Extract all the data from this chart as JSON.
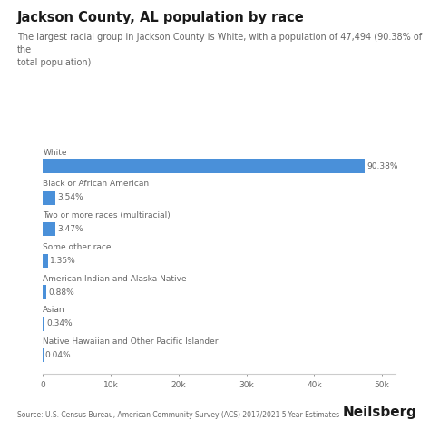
{
  "title": "Jackson County, AL population by race",
  "subtitle": "The largest racial group in Jackson County is White, with a population of 47,494 (90.38% of the\ntotal population)",
  "categories": [
    "White",
    "Black or African American",
    "Two or more races (multiracial)",
    "Some other race",
    "American Indian and Alaska Native",
    "Asian",
    "Native Hawaiian and Other Pacific Islander"
  ],
  "values": [
    47494,
    1860,
    1823,
    709,
    463,
    179,
    21
  ],
  "percentages": [
    "90.38%",
    "3.54%",
    "3.47%",
    "1.35%",
    "0.88%",
    "0.34%",
    "0.04%"
  ],
  "bar_color": "#4a90d9",
  "background_color": "#ffffff",
  "text_color": "#1a1a1a",
  "label_color": "#666666",
  "source_text": "Source: U.S. Census Bureau, American Community Survey (ACS) 2017/2021 5-Year Estimates",
  "brand_text": "Neilsberg",
  "xlim": [
    0,
    52000
  ],
  "xticks": [
    0,
    10000,
    20000,
    30000,
    40000,
    50000
  ],
  "xtick_labels": [
    "0",
    "10k",
    "20k",
    "30k",
    "40k",
    "50k"
  ]
}
